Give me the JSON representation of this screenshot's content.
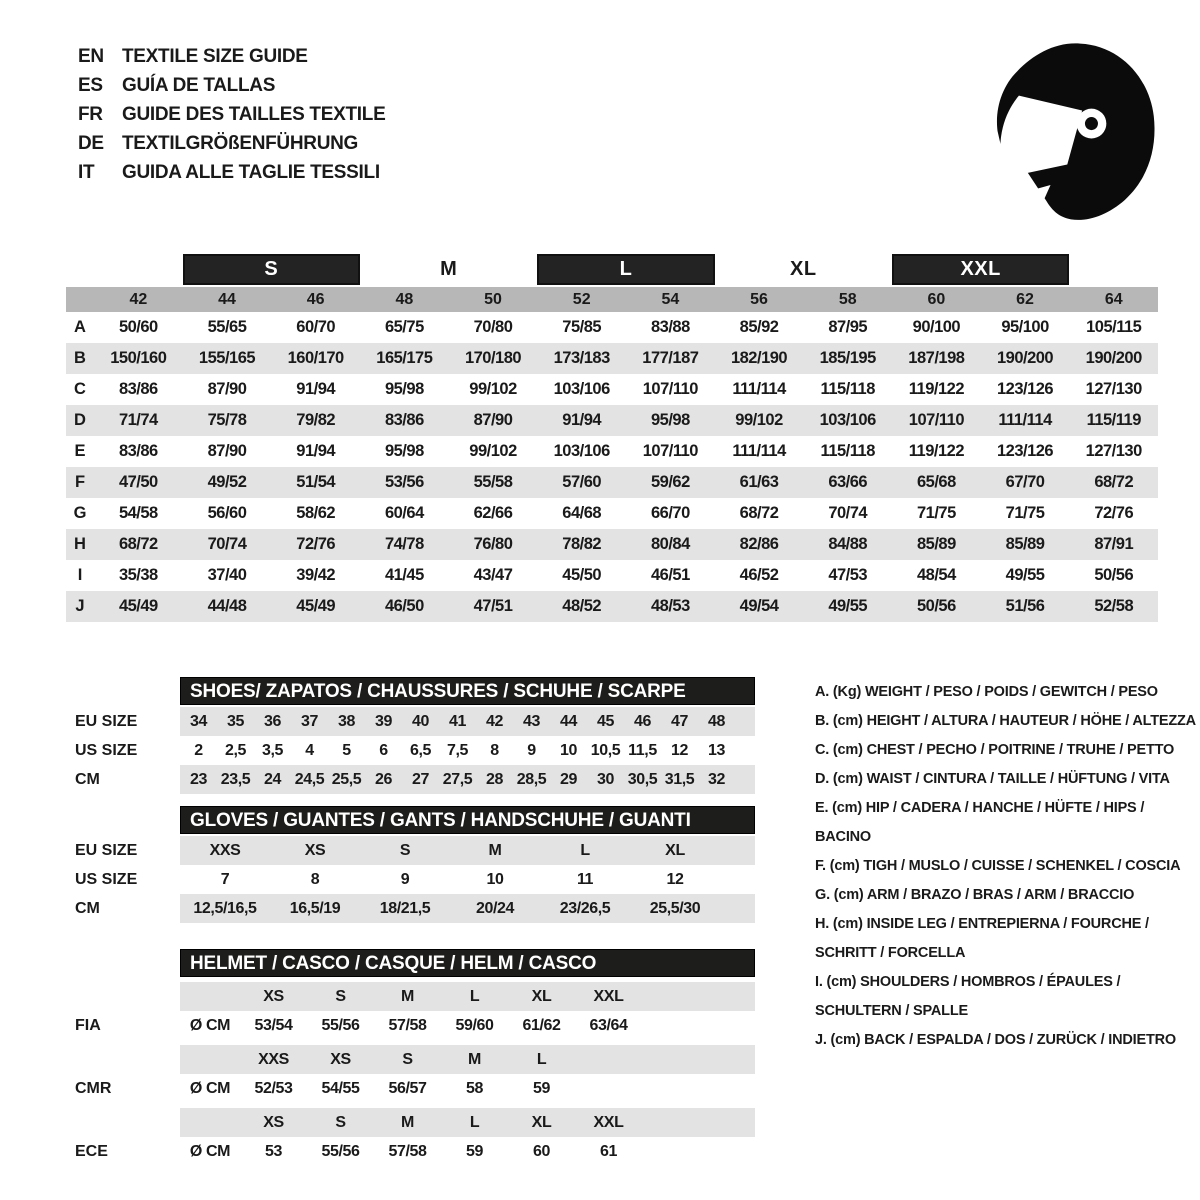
{
  "header": {
    "languages": [
      {
        "code": "EN",
        "title": "TEXTILE SIZE GUIDE"
      },
      {
        "code": "ES",
        "title": "GUÍA DE TALLAS"
      },
      {
        "code": "FR",
        "title": "GUIDE DES TAILLES TEXTILE"
      },
      {
        "code": "DE",
        "title": "TEXTILGRÖßENFÜHRUNG"
      },
      {
        "code": "IT",
        "title": "GUIDA ALLE TAGLIE TESSILI"
      }
    ],
    "helmet_icon": "full-face-racing-helmet"
  },
  "colors": {
    "bar_black": "#1d1d1b",
    "band_gray": "#b7b7b7",
    "stripe_gray": "#e3e3e3",
    "text": "#1a1a1a"
  },
  "textile_table": {
    "group_headers": [
      {
        "label": "S",
        "boxed": true
      },
      {
        "label": "M",
        "boxed": false
      },
      {
        "label": "L",
        "boxed": true
      },
      {
        "label": "XL",
        "boxed": false
      },
      {
        "label": "XXL",
        "boxed": true
      }
    ],
    "numeric_sizes": [
      "42",
      "44",
      "46",
      "48",
      "50",
      "52",
      "54",
      "56",
      "58",
      "60",
      "62",
      "64"
    ],
    "rows": [
      {
        "label": "A",
        "values": [
          "50/60",
          "55/65",
          "60/70",
          "65/75",
          "70/80",
          "75/85",
          "83/88",
          "85/92",
          "87/95",
          "90/100",
          "95/100",
          "105/115"
        ]
      },
      {
        "label": "B",
        "values": [
          "150/160",
          "155/165",
          "160/170",
          "165/175",
          "170/180",
          "173/183",
          "177/187",
          "182/190",
          "185/195",
          "187/198",
          "190/200",
          "190/200"
        ]
      },
      {
        "label": "C",
        "values": [
          "83/86",
          "87/90",
          "91/94",
          "95/98",
          "99/102",
          "103/106",
          "107/110",
          "111/114",
          "115/118",
          "119/122",
          "123/126",
          "127/130"
        ]
      },
      {
        "label": "D",
        "values": [
          "71/74",
          "75/78",
          "79/82",
          "83/86",
          "87/90",
          "91/94",
          "95/98",
          "99/102",
          "103/106",
          "107/110",
          "111/114",
          "115/119"
        ]
      },
      {
        "label": "E",
        "values": [
          "83/86",
          "87/90",
          "91/94",
          "95/98",
          "99/102",
          "103/106",
          "107/110",
          "111/114",
          "115/118",
          "119/122",
          "123/126",
          "127/130"
        ]
      },
      {
        "label": "F",
        "values": [
          "47/50",
          "49/52",
          "51/54",
          "53/56",
          "55/58",
          "57/60",
          "59/62",
          "61/63",
          "63/66",
          "65/68",
          "67/70",
          "68/72"
        ]
      },
      {
        "label": "G",
        "values": [
          "54/58",
          "56/60",
          "58/62",
          "60/64",
          "62/66",
          "64/68",
          "66/70",
          "68/72",
          "70/74",
          "71/75",
          "71/75",
          "72/76"
        ]
      },
      {
        "label": "H",
        "values": [
          "68/72",
          "70/74",
          "72/76",
          "74/78",
          "76/80",
          "78/82",
          "80/84",
          "82/86",
          "84/88",
          "85/89",
          "85/89",
          "87/91"
        ]
      },
      {
        "label": "I",
        "values": [
          "35/38",
          "37/40",
          "39/42",
          "41/45",
          "43/47",
          "45/50",
          "46/51",
          "46/52",
          "47/53",
          "48/54",
          "49/55",
          "50/56"
        ]
      },
      {
        "label": "J",
        "values": [
          "45/49",
          "44/48",
          "45/49",
          "46/50",
          "47/51",
          "48/52",
          "48/53",
          "49/54",
          "49/55",
          "50/56",
          "51/56",
          "52/58"
        ]
      }
    ]
  },
  "shoes_table": {
    "title": "SHOES/ ZAPATOS / CHAUSSURES / SCHUHE / SCARPE",
    "rows": [
      {
        "label": "EU SIZE",
        "shaded": true,
        "values": [
          "34",
          "35",
          "36",
          "37",
          "38",
          "39",
          "40",
          "41",
          "42",
          "43",
          "44",
          "45",
          "46",
          "47",
          "48"
        ]
      },
      {
        "label": "US SIZE",
        "shaded": false,
        "values": [
          "2",
          "2,5",
          "3,5",
          "4",
          "5",
          "6",
          "6,5",
          "7,5",
          "8",
          "9",
          "10",
          "10,5",
          "11,5",
          "12",
          "13"
        ]
      },
      {
        "label": "CM",
        "shaded": true,
        "values": [
          "23",
          "23,5",
          "24",
          "24,5",
          "25,5",
          "26",
          "27",
          "27,5",
          "28",
          "28,5",
          "29",
          "30",
          "30,5",
          "31,5",
          "32"
        ]
      }
    ]
  },
  "gloves_table": {
    "title": "GLOVES / GUANTES / GANTS / HANDSCHUHE / GUANTI",
    "rows": [
      {
        "label": "EU SIZE",
        "shaded": true,
        "values": [
          "XXS",
          "XS",
          "S",
          "M",
          "L",
          "XL"
        ]
      },
      {
        "label": "US SIZE",
        "shaded": false,
        "values": [
          "7",
          "8",
          "9",
          "10",
          "11",
          "12"
        ]
      },
      {
        "label": "CM",
        "shaded": true,
        "values": [
          "12,5/16,5",
          "16,5/19",
          "18/21,5",
          "20/24",
          "23/26,5",
          "25,5/30"
        ]
      }
    ]
  },
  "helmet_table": {
    "title": "HELMET / CASCO / CASQUE / HELM / CASCO",
    "sections": [
      {
        "label": "FIA",
        "unit": "Ø CM",
        "sizes": [
          "XS",
          "S",
          "M",
          "L",
          "XL",
          "XXL"
        ],
        "values": [
          "53/54",
          "55/56",
          "57/58",
          "59/60",
          "61/62",
          "63/64"
        ]
      },
      {
        "label": "CMR",
        "unit": "Ø CM",
        "sizes": [
          "XXS",
          "XS",
          "S",
          "M",
          "L"
        ],
        "values": [
          "52/53",
          "54/55",
          "56/57",
          "58",
          "59"
        ]
      },
      {
        "label": "ECE",
        "unit": "Ø CM",
        "sizes": [
          "XS",
          "S",
          "M",
          "L",
          "XL",
          "XXL"
        ],
        "values": [
          "53",
          "55/56",
          "57/58",
          "59",
          "60",
          "61"
        ]
      }
    ]
  },
  "legend": {
    "items": [
      {
        "key": "A.",
        "unit": "(Kg)",
        "text": "WEIGHT / PESO / POIDS / GEWITCH / PESO"
      },
      {
        "key": "B.",
        "unit": "(cm)",
        "text": "HEIGHT / ALTURA / HAUTEUR / HÖHE / ALTEZZA"
      },
      {
        "key": "C.",
        "unit": "(cm)",
        "text": "CHEST / PECHO / POITRINE / TRUHE / PETTO"
      },
      {
        "key": "D.",
        "unit": "(cm)",
        "text": "WAIST / CINTURA / TAILLE / HÜFTUNG / VITA"
      },
      {
        "key": "E.",
        "unit": "(cm)",
        "text": "HIP / CADERA / HANCHE / HÜFTE / HIPS / BACINO"
      },
      {
        "key": "F.",
        "unit": "(cm)",
        "text": "TIGH / MUSLO / CUISSE / SCHENKEL / COSCIA"
      },
      {
        "key": "G.",
        "unit": "(cm)",
        "text": "ARM / BRAZO / BRAS / ARM / BRACCIO"
      },
      {
        "key": "H.",
        "unit": "(cm)",
        "text": "INSIDE LEG / ENTREPIERNA / FOURCHE / SCHRITT / FORCELLA"
      },
      {
        "key": "I.",
        "unit": "(cm)",
        "text": "SHOULDERS / HOMBROS / ÉPAULES / SCHULTERN / SPALLE"
      },
      {
        "key": "J.",
        "unit": "(cm)",
        "text": "BACK / ESPALDA / DOS / ZURÜCK / INDIETRO"
      }
    ]
  }
}
